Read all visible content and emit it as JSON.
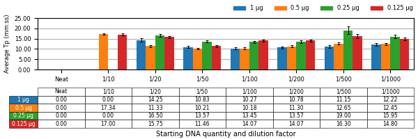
{
  "chart_data": {
    "type": "bar",
    "categories": [
      "Neat",
      "1/10",
      "1/20",
      "1/50",
      "1/100",
      "1/200",
      "1/500",
      "1/1000"
    ],
    "series": [
      {
        "name": "1 μg",
        "values": [
          0.0,
          0.0,
          14.25,
          10.83,
          10.27,
          10.78,
          11.15,
          12.22
        ],
        "errors": [
          0.0,
          0.0,
          0.8,
          0.5,
          0.4,
          0.5,
          0.6,
          0.7
        ],
        "value_labels": [
          "0.00",
          "0.00",
          "14.25",
          "10.83",
          "10.27",
          "10.78",
          "11.15",
          "12.22"
        ]
      },
      {
        "name": "0.5 μg",
        "values": [
          0.0,
          17.34,
          11.33,
          10.21,
          10.18,
          11.3,
          12.65,
          12.45
        ],
        "errors": [
          0.0,
          0.3,
          0.5,
          0.4,
          0.5,
          0.5,
          0.6,
          0.5
        ],
        "value_labels": [
          "0.00",
          "17.34",
          "11.33",
          "10.21",
          "10.18",
          "11.30",
          "12.65",
          "12.45"
        ]
      },
      {
        "name": "0.25 μg",
        "values": [
          0.0,
          0.0,
          16.5,
          13.57,
          13.45,
          13.57,
          19.0,
          15.95
        ],
        "errors": [
          0.0,
          0.0,
          0.6,
          0.5,
          0.5,
          0.6,
          1.8,
          0.9
        ],
        "value_labels": [
          "0.00",
          "0.00",
          "16.50",
          "13.57",
          "13.45",
          "13.57",
          "19.00",
          "15.95"
        ]
      },
      {
        "name": "0.125 μg",
        "values": [
          0.0,
          17.0,
          15.75,
          11.46,
          14.07,
          14.07,
          16.3,
          14.8
        ],
        "errors": [
          0.0,
          0.4,
          0.5,
          0.5,
          0.6,
          0.5,
          1.0,
          0.6
        ],
        "value_labels": [
          "0.00",
          "17.00",
          "15.75",
          "11.46",
          "14.07",
          "14.07",
          "16.30",
          "14.80"
        ]
      }
    ],
    "y_label": "Average Tp (mm:ss)",
    "x_label": "Starting DNA quantity and dilution factor",
    "ylim": [
      0,
      25
    ],
    "yticks": [
      {
        "value": 0.0,
        "label": "0.00"
      },
      {
        "value": 5.0,
        "label": "5.00"
      },
      {
        "value": 10.0,
        "label": "10.00"
      },
      {
        "value": 15.0,
        "label": "15.00"
      },
      {
        "value": 20.0,
        "label": "20.00"
      },
      {
        "value": 25.0,
        "label": "25.00"
      }
    ],
    "grid": true,
    "legend": "upper right"
  }
}
